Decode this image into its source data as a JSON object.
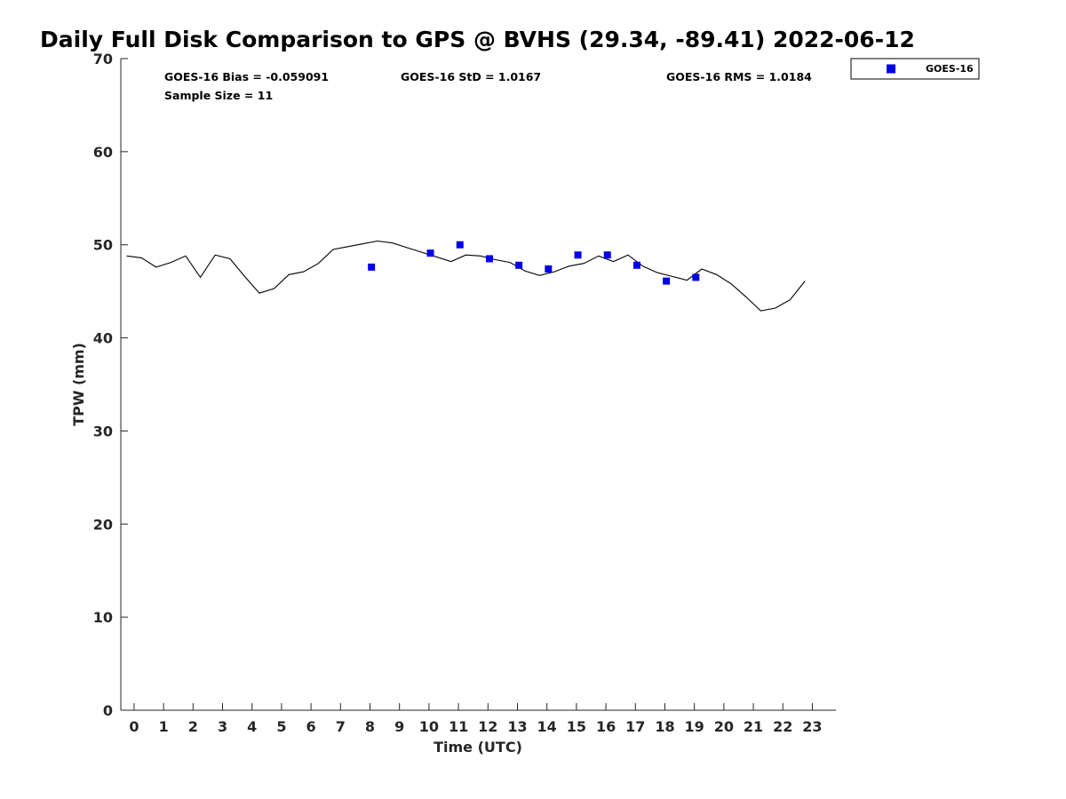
{
  "chart_data": {
    "type": "line",
    "title": "Daily Full Disk Comparison to GPS @ BVHS (29.34, -89.41) 2022-06-12",
    "xlabel": "Time (UTC)",
    "ylabel": "TPW (mm)",
    "xlim": [
      -0.45,
      23.8
    ],
    "ylim": [
      0,
      70
    ],
    "x_ticks": [
      0,
      1,
      2,
      3,
      4,
      5,
      6,
      7,
      8,
      9,
      10,
      11,
      12,
      13,
      14,
      15,
      16,
      17,
      18,
      19,
      20,
      21,
      22,
      23
    ],
    "y_ticks": [
      0,
      10,
      20,
      30,
      40,
      50,
      60,
      70
    ],
    "grid": false,
    "legend_position": "top-right, outside plot",
    "stats": {
      "bias": "GOES-16 Bias = -0.059091",
      "std": "GOES-16 StD = 1.0167",
      "rms": "GOES-16 RMS = 1.0184",
      "sample": "Sample Size = 11"
    },
    "series": [
      {
        "kind": "line",
        "color": "#000000",
        "x": [
          -0.25,
          0.25,
          0.75,
          1.25,
          1.75,
          2.25,
          2.75,
          3.25,
          3.75,
          4.25,
          4.75,
          5.25,
          5.75,
          6.25,
          6.75,
          7.25,
          7.75,
          8.25,
          8.75,
          9.25,
          9.75,
          10.25,
          10.75,
          11.25,
          11.75,
          12.25,
          12.75,
          13.25,
          13.75,
          14.25,
          14.75,
          15.25,
          15.75,
          16.25,
          16.75,
          17.25,
          17.75,
          18.25,
          18.75,
          19.25,
          19.75,
          20.25,
          20.75,
          21.25,
          21.75,
          22.25,
          22.75
        ],
        "y": [
          48.8,
          48.6,
          47.6,
          48.1,
          48.8,
          46.5,
          48.9,
          48.5,
          46.6,
          44.8,
          45.3,
          46.8,
          47.1,
          48.0,
          49.5,
          49.8,
          50.1,
          50.4,
          50.2,
          49.7,
          49.2,
          48.7,
          48.2,
          48.9,
          48.8,
          48.4,
          48.1,
          47.2,
          46.7,
          47.1,
          47.7,
          48.0,
          48.8,
          48.2,
          48.9,
          47.7,
          47.0,
          46.6,
          46.2,
          47.4,
          46.8,
          45.8,
          44.4,
          42.9,
          43.2,
          44.1,
          46.1
        ]
      },
      {
        "kind": "scatter",
        "name": "GOES-16",
        "color": "#0000e6",
        "x": [
          8.05,
          10.05,
          11.05,
          12.05,
          13.05,
          14.05,
          15.05,
          16.05,
          17.05,
          18.05,
          19.05
        ],
        "y": [
          47.6,
          49.1,
          50.0,
          48.5,
          47.8,
          47.4,
          48.9,
          48.9,
          47.8,
          46.1,
          46.5
        ]
      }
    ]
  }
}
